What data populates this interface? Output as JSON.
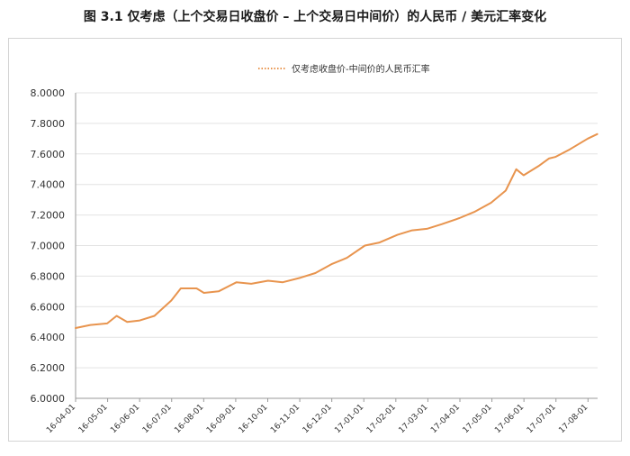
{
  "figure": {
    "title": "图 3.1 仅考虑（上个交易日收盘价 – 上个交易日中间价）的人民币 / 美元汇率变化"
  },
  "chart_data": {
    "type": "line",
    "title": "图 3.1 仅考虑（上个交易日收盘价 – 上个交易日中间价）的人民币 / 美元汇率变化",
    "xlabel": "",
    "ylabel": "",
    "ylim": [
      6.0,
      8.0
    ],
    "yticks": [
      "6.0000",
      "6.2000",
      "6.4000",
      "6.6000",
      "6.8000",
      "7.0000",
      "7.2000",
      "7.4000",
      "7.6000",
      "7.8000",
      "8.0000"
    ],
    "xticks": [
      "16-04-01",
      "16-05-01",
      "16-06-01",
      "16-07-01",
      "16-08-01",
      "16-09-01",
      "16-10-01",
      "16-11-01",
      "16-12-01",
      "17-01-01",
      "17-02-01",
      "17-03-01",
      "17-04-01",
      "17-05-01",
      "17-06-01",
      "17-07-01",
      "17-08-01"
    ],
    "grid": "horizontal",
    "legend_position": "top",
    "color": "#e8944e",
    "series": [
      {
        "name": "仅考虑收盘价-中间价的人民币汇率",
        "points": [
          [
            "16-04-01",
            6.46
          ],
          [
            "16-04-15",
            6.48
          ],
          [
            "16-05-01",
            6.49
          ],
          [
            "16-05-10",
            6.54
          ],
          [
            "16-05-20",
            6.5
          ],
          [
            "16-06-01",
            6.51
          ],
          [
            "16-06-15",
            6.54
          ],
          [
            "16-07-01",
            6.64
          ],
          [
            "16-07-10",
            6.72
          ],
          [
            "16-07-25",
            6.72
          ],
          [
            "16-08-01",
            6.69
          ],
          [
            "16-08-15",
            6.7
          ],
          [
            "16-09-01",
            6.76
          ],
          [
            "16-09-15",
            6.75
          ],
          [
            "16-10-01",
            6.77
          ],
          [
            "16-10-15",
            6.76
          ],
          [
            "16-11-01",
            6.79
          ],
          [
            "16-11-15",
            6.82
          ],
          [
            "16-12-01",
            6.88
          ],
          [
            "16-12-15",
            6.92
          ],
          [
            "17-01-01",
            7.0
          ],
          [
            "17-01-15",
            7.02
          ],
          [
            "17-02-01",
            7.07
          ],
          [
            "17-02-15",
            7.1
          ],
          [
            "17-03-01",
            7.11
          ],
          [
            "17-03-15",
            7.14
          ],
          [
            "17-04-01",
            7.18
          ],
          [
            "17-04-15",
            7.22
          ],
          [
            "17-05-01",
            7.28
          ],
          [
            "17-05-15",
            7.36
          ],
          [
            "17-05-25",
            7.5
          ],
          [
            "17-06-01",
            7.46
          ],
          [
            "17-06-15",
            7.52
          ],
          [
            "17-06-25",
            7.57
          ],
          [
            "17-07-01",
            7.58
          ],
          [
            "17-07-15",
            7.63
          ],
          [
            "17-08-01",
            7.7
          ],
          [
            "17-08-10",
            7.73
          ]
        ]
      }
    ]
  }
}
